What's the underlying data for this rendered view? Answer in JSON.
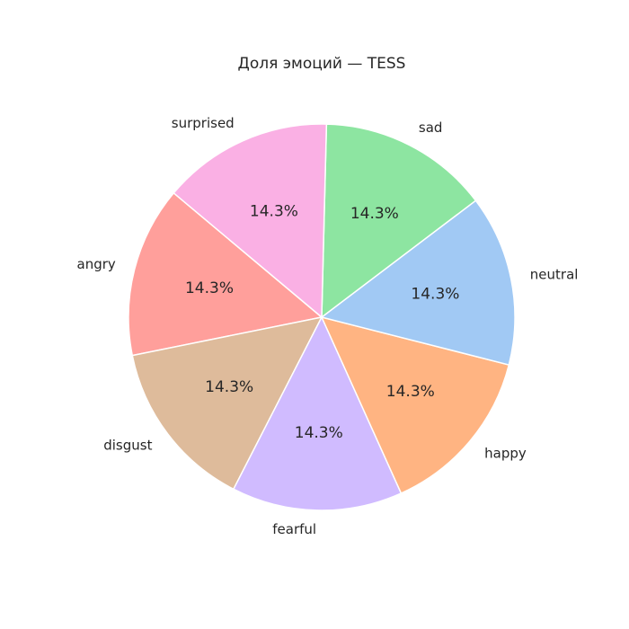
{
  "chart_data": {
    "type": "pie",
    "title": "Доля эмоций — TESS",
    "labels": [
      "angry",
      "disgust",
      "fearful",
      "happy",
      "neutral",
      "sad",
      "surprised"
    ],
    "values": [
      14.3,
      14.3,
      14.3,
      14.3,
      14.3,
      14.3,
      14.3
    ],
    "value_labels": [
      "14.3%",
      "14.3%",
      "14.3%",
      "14.3%",
      "14.3%",
      "14.3%",
      "14.3%"
    ],
    "colors": [
      "#ff9f9b",
      "#debb9b",
      "#d0bbff",
      "#ffb482",
      "#a1c9f4",
      "#8de5a1",
      "#fab0e4"
    ],
    "start_angle_deg": 140,
    "direction": "counterclockwise",
    "legend": "none"
  }
}
